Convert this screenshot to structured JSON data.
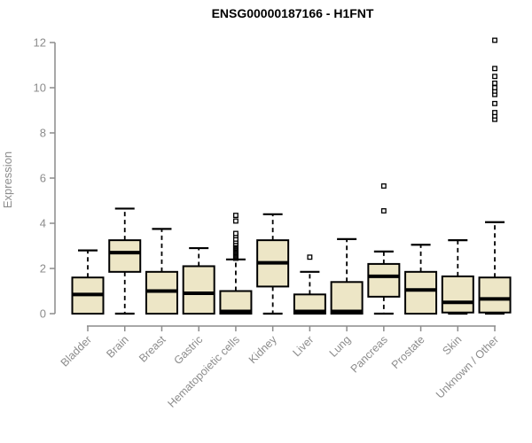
{
  "chart_data": {
    "type": "boxplot",
    "title": "ENSG00000187166 - H1FNT",
    "ylabel": "Expression",
    "ylim": [
      0,
      12
    ],
    "yticks": [
      0,
      2,
      4,
      6,
      8,
      10,
      12
    ],
    "grid": false,
    "legend_position": "none",
    "colors": {
      "box_fill": "#ede6c6",
      "box_border": "#000000",
      "median": "#000000",
      "axis": "#8c8c8c",
      "tick_label": "#8c8c8c",
      "title": "#000000",
      "outlier_fill": "#ffffff"
    },
    "categories": [
      "Bladder",
      "Brain",
      "Breast",
      "Gastric",
      "Hematopoietic cells",
      "Kidney",
      "Liver",
      "Lung",
      "Pancreas",
      "Prostate",
      "Skin",
      "Unknown / Other"
    ],
    "boxes": [
      {
        "category": "Bladder",
        "whisker_low": 0,
        "q1": 0,
        "median": 0.85,
        "q3": 1.6,
        "whisker_high": 2.8,
        "outliers": []
      },
      {
        "category": "Brain",
        "whisker_low": 0,
        "q1": 1.85,
        "median": 2.7,
        "q3": 3.25,
        "whisker_high": 4.65,
        "outliers": []
      },
      {
        "category": "Breast",
        "whisker_low": 0,
        "q1": 0,
        "median": 1.0,
        "q3": 1.85,
        "whisker_high": 3.75,
        "outliers": []
      },
      {
        "category": "Gastric",
        "whisker_low": 0,
        "q1": 0,
        "median": 0.9,
        "q3": 2.1,
        "whisker_high": 2.9,
        "outliers": []
      },
      {
        "category": "Hematopoietic cells",
        "whisker_low": 0,
        "q1": 0,
        "median": 0.1,
        "q3": 1.0,
        "whisker_high": 2.4,
        "outliers": [
          2.45,
          2.5,
          2.55,
          2.6,
          2.65,
          2.7,
          2.75,
          2.8,
          2.85,
          2.9,
          2.95,
          3.0,
          3.05,
          3.1,
          3.2,
          3.3,
          3.45,
          3.55,
          4.1,
          4.35
        ]
      },
      {
        "category": "Kidney",
        "whisker_low": 0,
        "q1": 1.2,
        "median": 2.25,
        "q3": 3.25,
        "whisker_high": 4.4,
        "outliers": []
      },
      {
        "category": "Liver",
        "whisker_low": 0,
        "q1": 0,
        "median": 0.1,
        "q3": 0.85,
        "whisker_high": 1.85,
        "outliers": [
          2.5
        ]
      },
      {
        "category": "Lung",
        "whisker_low": 0,
        "q1": 0,
        "median": 0.1,
        "q3": 1.4,
        "whisker_high": 3.3,
        "outliers": []
      },
      {
        "category": "Pancreas",
        "whisker_low": 0,
        "q1": 0.75,
        "median": 1.65,
        "q3": 2.2,
        "whisker_high": 2.75,
        "outliers": [
          4.55,
          5.65
        ]
      },
      {
        "category": "Prostate",
        "whisker_low": 0,
        "q1": 0,
        "median": 1.05,
        "q3": 1.85,
        "whisker_high": 3.05,
        "outliers": []
      },
      {
        "category": "Skin",
        "whisker_low": 0,
        "q1": 0.05,
        "median": 0.5,
        "q3": 1.65,
        "whisker_high": 3.25,
        "outliers": []
      },
      {
        "category": "Unknown / Other",
        "whisker_low": 0,
        "q1": 0.05,
        "median": 0.65,
        "q3": 1.6,
        "whisker_high": 4.05,
        "outliers": [
          8.6,
          8.75,
          8.9,
          9.3,
          9.7,
          9.85,
          10.0,
          10.2,
          10.5,
          10.85,
          12.1
        ]
      }
    ]
  }
}
